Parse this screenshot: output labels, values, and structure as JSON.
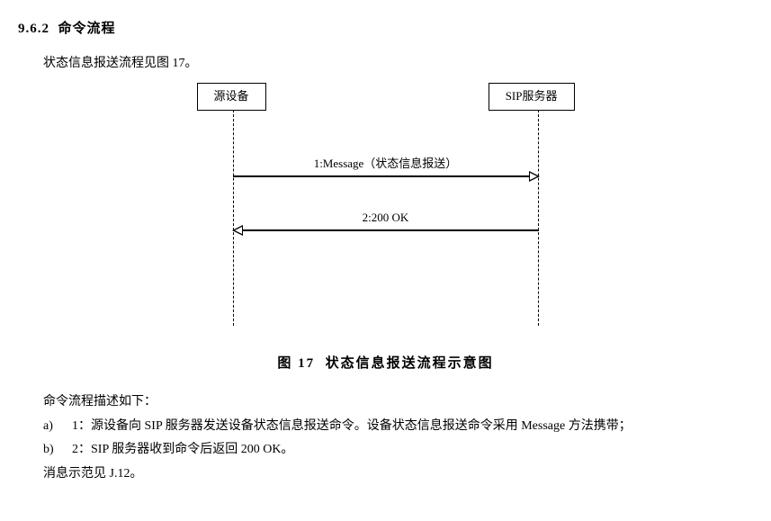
{
  "section": {
    "number": "9.6.2",
    "title": "命令流程"
  },
  "intro": "状态信息报送流程见图 17。",
  "diagram": {
    "lifelines": {
      "left": "源设备",
      "right": "SIP服务器"
    },
    "messages": [
      {
        "label": "1:Message（状态信息报送）",
        "direction": "right"
      },
      {
        "label": "2:200 OK",
        "direction": "left"
      }
    ]
  },
  "caption": {
    "prefix": "图 17",
    "text": "状态信息报送流程示意图"
  },
  "description": {
    "intro": "命令流程描述如下：",
    "items": [
      {
        "marker": "a)",
        "text": "1：源设备向 SIP 服务器发送设备状态信息报送命令。设备状态信息报送命令采用 Message 方法携带；"
      },
      {
        "marker": "b)",
        "text": "2：SIP 服务器收到命令后返回 200 OK。"
      }
    ],
    "footnote": "消息示范见 J.12。"
  }
}
